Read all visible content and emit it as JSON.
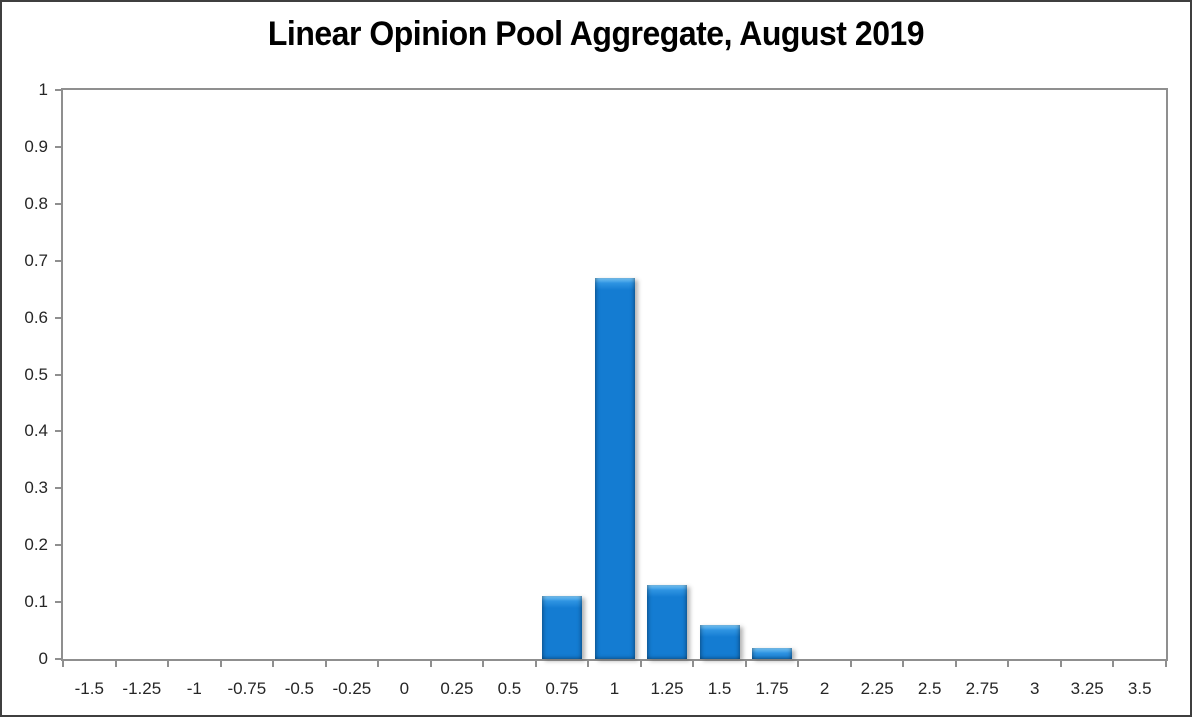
{
  "window": {
    "background": "#FFFFFF",
    "outer_border_color": "#3F3F3F"
  },
  "chart_data": {
    "type": "bar",
    "title": "Linear Opinion Pool Aggregate, August 2019",
    "categories": [
      "-1.5",
      "-1.25",
      "-1",
      "-0.75",
      "-0.5",
      "-0.25",
      "0",
      "0.25",
      "0.5",
      "0.75",
      "1",
      "1.25",
      "1.5",
      "1.75",
      "2",
      "2.25",
      "2.5",
      "2.75",
      "3",
      "3.25",
      "3.5"
    ],
    "values": [
      0,
      0,
      0,
      0,
      0,
      0,
      0,
      0,
      0,
      0.11,
      0.67,
      0.13,
      0.06,
      0.02,
      0,
      0,
      0,
      0,
      0,
      0,
      0
    ],
    "xlabel": "",
    "ylabel": "",
    "ylim": [
      0,
      1
    ],
    "ytick_step": 0.1,
    "ytick_labels": [
      "1",
      "0.9",
      "0.8",
      "0.7",
      "0.6",
      "0.5",
      "0.4",
      "0.3",
      "0.2",
      "0.1",
      "0"
    ],
    "gridlines": false,
    "legend": "none",
    "bar_color": "#147CD2",
    "bar_color_mid": "#2F94E2",
    "bar_highlight": "#7EC9F7",
    "axis_color": "#8F8F8F",
    "tick_label_color": "#262626",
    "title_color": "#000000"
  }
}
